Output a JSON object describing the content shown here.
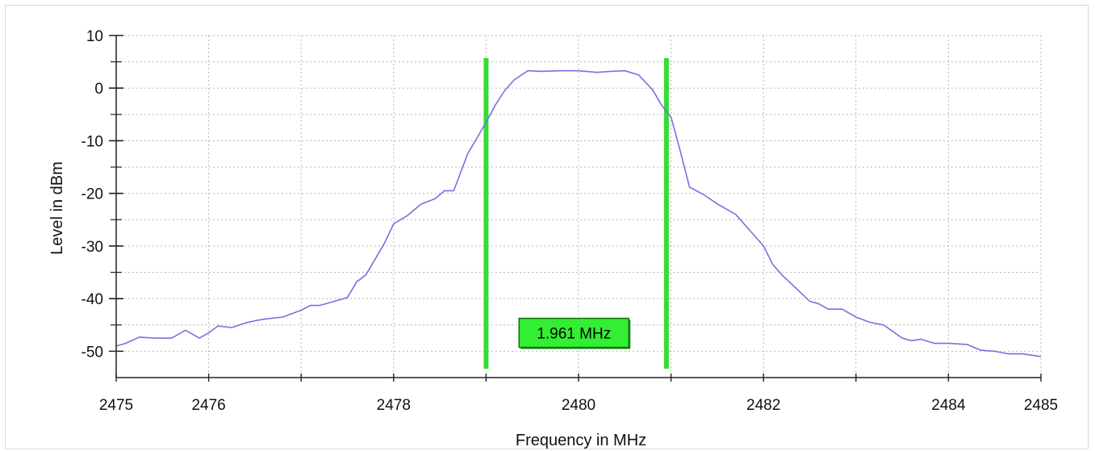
{
  "chart_data": {
    "type": "line",
    "title": "",
    "xlabel": "Frequency in MHz",
    "ylabel": "Level in dBm",
    "xlim": [
      2475,
      2485
    ],
    "ylim": [
      -55,
      10
    ],
    "x_ticks": [
      "2475",
      "2476",
      "2478",
      "2480",
      "2482",
      "2484",
      "2485"
    ],
    "x_tick_values": [
      2475,
      2476,
      2478,
      2480,
      2482,
      2484,
      2485
    ],
    "y_ticks": [
      "10",
      "0",
      "-10",
      "-20",
      "-30",
      "-40",
      "-50"
    ],
    "y_tick_values": [
      10,
      0,
      -10,
      -20,
      -30,
      -40,
      -50
    ],
    "grid": true,
    "series": [
      {
        "color": "#7b6fe0",
        "x": [
          2475.0,
          2475.1,
          2475.25,
          2475.4,
          2475.6,
          2475.75,
          2475.9,
          2476.0,
          2476.1,
          2476.25,
          2476.4,
          2476.5,
          2476.6,
          2476.8,
          2477.0,
          2477.1,
          2477.2,
          2477.3,
          2477.5,
          2477.6,
          2477.7,
          2477.8,
          2477.9,
          2478.0,
          2478.15,
          2478.3,
          2478.45,
          2478.55,
          2478.65,
          2478.8,
          2479.0,
          2479.1,
          2479.2,
          2479.3,
          2479.45,
          2479.6,
          2479.8,
          2480.0,
          2480.2,
          2480.35,
          2480.5,
          2480.65,
          2480.8,
          2480.9,
          2481.0,
          2481.1,
          2481.2,
          2481.35,
          2481.5,
          2481.7,
          2481.85,
          2482.0,
          2482.1,
          2482.2,
          2482.35,
          2482.5,
          2482.6,
          2482.7,
          2482.85,
          2483.0,
          2483.15,
          2483.3,
          2483.5,
          2483.6,
          2483.7,
          2483.85,
          2484.0,
          2484.2,
          2484.35,
          2484.5,
          2484.65,
          2484.8,
          2485.0
        ],
        "values": [
          -49,
          -48.5,
          -47.3,
          -47.5,
          -47.5,
          -46,
          -47.5,
          -46.5,
          -45.2,
          -45.5,
          -44.6,
          -44.2,
          -43.9,
          -43.5,
          -42.2,
          -41.3,
          -41.3,
          -40.8,
          -39.8,
          -36.8,
          -35.5,
          -32.5,
          -29.5,
          -25.8,
          -24.2,
          -22,
          -21,
          -19.5,
          -19.5,
          -12.5,
          -6.5,
          -3.2,
          -0.5,
          1.5,
          3.3,
          3.2,
          3.3,
          3.3,
          3.0,
          3.2,
          3.3,
          2.5,
          -0.3,
          -3.3,
          -5.5,
          -12.0,
          -18.8,
          -20.2,
          -22.0,
          -24.0,
          -27.0,
          -30.0,
          -33.5,
          -35.5,
          -38.0,
          -40.5,
          -41.0,
          -42.0,
          -42.0,
          -43.5,
          -44.5,
          -45.0,
          -47.5,
          -48.0,
          -47.7,
          -48.5,
          -48.5,
          -48.7,
          -49.8,
          -50.0,
          -50.5,
          -50.5,
          -51.0
        ]
      }
    ],
    "markers": [
      {
        "x": 2479.0,
        "color": "#33dd33"
      },
      {
        "x": 2480.95,
        "color": "#33dd33"
      }
    ],
    "annotation": {
      "text": "1.961 MHz",
      "x": 2479.95,
      "y": -46.5,
      "color": "#33ee33"
    }
  }
}
